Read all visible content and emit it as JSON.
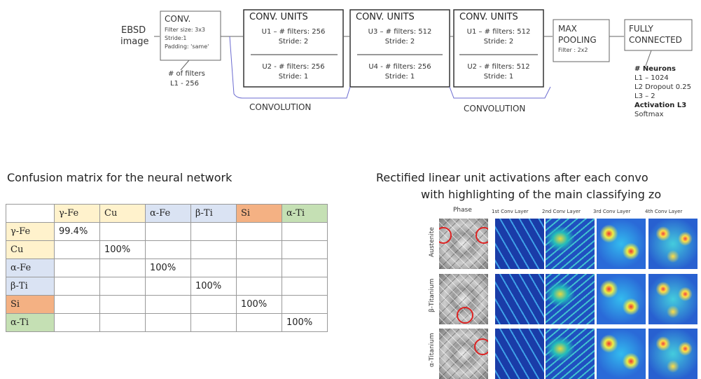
{
  "pipeline": {
    "input": [
      "EBSD",
      "image"
    ],
    "conv": {
      "title": "CONV.",
      "lines": [
        "Filter size: 3x3",
        "Stride:1",
        "Padding: 'same'"
      ],
      "note": [
        "# of filters",
        "L1 - 256"
      ]
    },
    "units": [
      {
        "title": "CONV. UNITS",
        "top": [
          "U1 – # filters: 256",
          "Stride: 2"
        ],
        "bottom": [
          "U2 - # filters: 256",
          "Stride: 1"
        ]
      },
      {
        "title": "CONV. UNITS",
        "top": [
          "U3 – # filters: 512",
          "Stride: 2"
        ],
        "bottom": [
          "U4 - # filters: 256",
          "Stride: 1"
        ]
      },
      {
        "title": "CONV. UNITS",
        "top": [
          "U1 – # filters: 512",
          "Stride: 2"
        ],
        "bottom": [
          "U2 - # filters: 512",
          "Stride: 1"
        ]
      }
    ],
    "pooling": {
      "title": [
        "MAX",
        "POOLING"
      ],
      "filter": "Filter : 2x2"
    },
    "fully_connected": {
      "title": [
        "FULLY",
        "CONNECTED"
      ],
      "notes": [
        "# Neurons",
        "L1 – 1024",
        "L2 Dropout 0.25",
        "L3 – 2",
        "Activation L3",
        "Softmax"
      ]
    },
    "convolution_labels": [
      "CONVOLUTION",
      "CONVOLUTION"
    ]
  },
  "confusion": {
    "title": "Confusion matrix for the neural network",
    "header": [
      "γ-Fe",
      "Cu",
      "α-Fe",
      "β-Ti",
      "Si",
      "α-Ti"
    ],
    "rows": [
      [
        "γ-Fe",
        "99.4%",
        null,
        null,
        null,
        null,
        null
      ],
      [
        "Cu",
        null,
        "100%",
        null,
        null,
        null,
        null
      ],
      [
        "α-Fe",
        null,
        null,
        "100%",
        null,
        null,
        null
      ],
      [
        "β-Ti",
        null,
        null,
        null,
        "100%",
        null,
        null
      ],
      [
        "Si",
        null,
        null,
        null,
        null,
        "100%",
        null
      ],
      [
        "α-Ti",
        null,
        null,
        null,
        null,
        null,
        "100%"
      ]
    ]
  },
  "activations": {
    "title": [
      "Rectified linear unit activations after each convo",
      "with highlighting of the main classifying zo"
    ],
    "columns": [
      "Phase",
      "1st Conv Layer",
      "2nd Conv Layer",
      "3rd Conv Layer",
      "4th Conv Layer"
    ],
    "rows": [
      "Austenite",
      "β-Titanium",
      "α-Titanium"
    ]
  }
}
